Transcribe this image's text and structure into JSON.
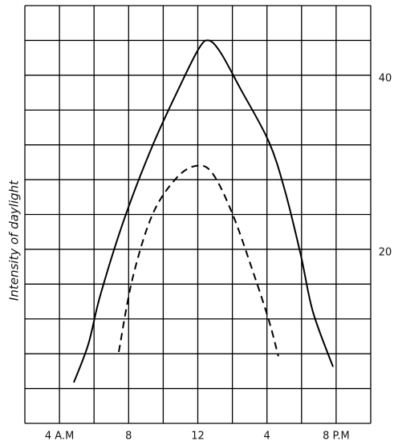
{
  "chart_data": {
    "type": "line",
    "y_label": "Intensity of daylight",
    "xlim": [
      2,
      22
    ],
    "ylim": [
      0,
      48
    ],
    "xticks": [
      {
        "value": 4,
        "label": "4 A.M"
      },
      8,
      12,
      {
        "value": 16,
        "label": "4"
      },
      {
        "value": 20,
        "label": "8 P.M"
      }
    ],
    "yticks": [
      20,
      40
    ],
    "xgrid": [
      2,
      4,
      6,
      8,
      10,
      12,
      14,
      16,
      18,
      20,
      22
    ],
    "ygrid": [
      0,
      4,
      8,
      12,
      16,
      20,
      24,
      28,
      32,
      36,
      40,
      44,
      48
    ],
    "grid": true,
    "series": [
      {
        "color": "#000000",
        "dash": "solid",
        "x": [
          4.83,
          5.67,
          6.36,
          7.75,
          9.38,
          11.0,
          12.07,
          12.63,
          13.32,
          14.48,
          16.1,
          17.03,
          17.96,
          18.66,
          19.82
        ],
        "values": [
          4.7,
          9.1,
          14.7,
          23.5,
          31.9,
          38.9,
          43.1,
          44.0,
          42.6,
          38.4,
          32.4,
          26.8,
          19.3,
          12.8,
          6.5
        ]
      },
      {
        "color": "#000000",
        "dash": "dashed",
        "x": [
          7.43,
          8.22,
          9.38,
          10.77,
          11.93,
          12.86,
          14.02,
          15.18,
          16.1,
          16.66
        ],
        "values": [
          8.2,
          16.6,
          24.0,
          28.2,
          29.6,
          28.7,
          24.0,
          17.5,
          11.9,
          7.7
        ]
      }
    ]
  }
}
